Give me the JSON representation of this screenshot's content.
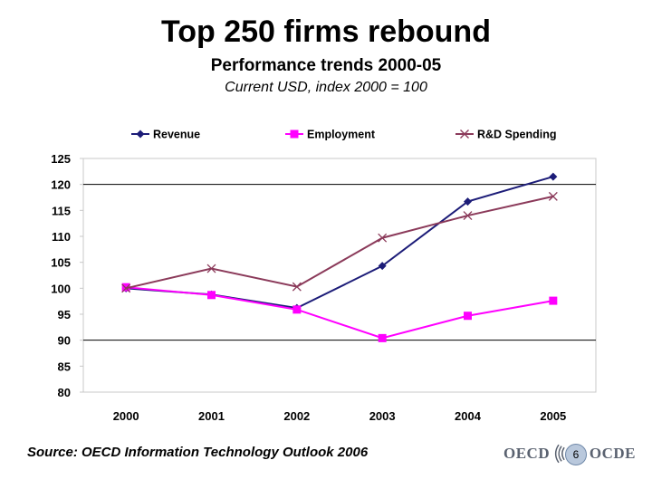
{
  "header": {
    "title": "Top 250 firms rebound",
    "subtitle": "Performance trends 2000-05",
    "note": "Current USD, index 2000 = 100"
  },
  "footer": {
    "source": "Source: OECD Information Technology Outlook 2006",
    "logo_left": "OECD",
    "logo_right": "OCDE",
    "page_number": "6"
  },
  "chart_data": {
    "type": "line",
    "x": [
      "2000",
      "2001",
      "2002",
      "2003",
      "2004",
      "2005"
    ],
    "ylim": [
      80,
      125
    ],
    "yticks": [
      80,
      85,
      90,
      95,
      100,
      105,
      110,
      115,
      120,
      125
    ],
    "grid": "horizontal lines at 90 and 120",
    "legend": "top",
    "series": [
      {
        "name": "Revenue",
        "marker": "diamond",
        "color": "#1c1c78",
        "values": [
          100,
          98.8,
          96.2,
          104.3,
          116.7,
          121.5
        ]
      },
      {
        "name": "Employment",
        "marker": "square",
        "color": "#ff00ff",
        "values": [
          100.2,
          98.7,
          95.9,
          90.4,
          94.7,
          97.6
        ]
      },
      {
        "name": "R&D Spending",
        "marker": "x",
        "color": "#8b3a5a",
        "values": [
          100,
          103.8,
          100.3,
          109.7,
          114,
          117.7
        ]
      }
    ]
  }
}
